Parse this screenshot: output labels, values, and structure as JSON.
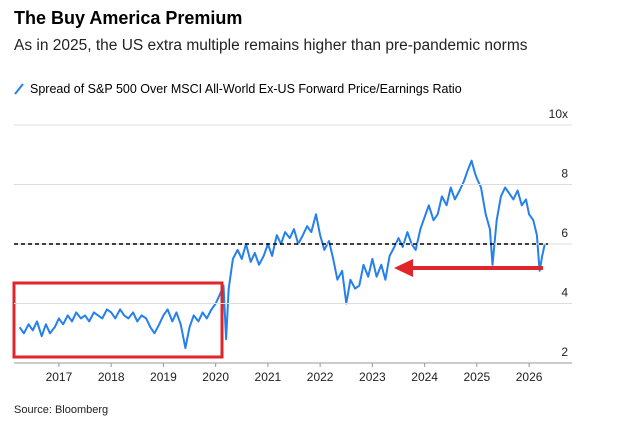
{
  "chart_data": {
    "type": "line",
    "title": "The Buy America Premium",
    "subtitle": "As in 2025, the US extra multiple remains higher than pre-pandemic norms",
    "source": "Source: Bloomberg",
    "x": [
      2016.25,
      2016.33,
      2016.42,
      2016.5,
      2016.58,
      2016.67,
      2016.75,
      2016.83,
      2016.92,
      2017.0,
      2017.08,
      2017.17,
      2017.25,
      2017.33,
      2017.42,
      2017.5,
      2017.58,
      2017.67,
      2017.75,
      2017.83,
      2017.92,
      2018.0,
      2018.08,
      2018.17,
      2018.25,
      2018.33,
      2018.42,
      2018.5,
      2018.58,
      2018.67,
      2018.75,
      2018.83,
      2018.92,
      2019.0,
      2019.08,
      2019.17,
      2019.25,
      2019.33,
      2019.42,
      2019.5,
      2019.58,
      2019.67,
      2019.75,
      2019.83,
      2019.92,
      2020.0,
      2020.08,
      2020.15,
      2020.2,
      2020.25,
      2020.33,
      2020.42,
      2020.5,
      2020.58,
      2020.67,
      2020.75,
      2020.83,
      2020.92,
      2021.0,
      2021.08,
      2021.17,
      2021.25,
      2021.33,
      2021.42,
      2021.5,
      2021.58,
      2021.67,
      2021.75,
      2021.83,
      2021.92,
      2022.0,
      2022.08,
      2022.17,
      2022.25,
      2022.33,
      2022.42,
      2022.5,
      2022.58,
      2022.67,
      2022.75,
      2022.83,
      2022.92,
      2023.0,
      2023.08,
      2023.17,
      2023.25,
      2023.33,
      2023.42,
      2023.5,
      2023.58,
      2023.67,
      2023.75,
      2023.83,
      2023.92,
      2024.0,
      2024.08,
      2024.17,
      2024.25,
      2024.33,
      2024.42,
      2024.5,
      2024.58,
      2024.67,
      2024.75,
      2024.83,
      2024.9,
      2024.96,
      2025.0,
      2025.08,
      2025.17,
      2025.25,
      2025.3,
      2025.38,
      2025.46,
      2025.54,
      2025.62,
      2025.7,
      2025.78,
      2025.86,
      2025.94,
      2026.0,
      2026.08,
      2026.15,
      2026.2,
      2026.25,
      2026.3
    ],
    "series": [
      {
        "name": "Spread of S&P 500 Over MSCI All-World Ex-US Forward Price/Earnings Ratio",
        "color": "#2680eb",
        "values": [
          3.2,
          3.0,
          3.3,
          3.1,
          3.4,
          2.9,
          3.3,
          3.0,
          3.2,
          3.5,
          3.3,
          3.6,
          3.4,
          3.7,
          3.5,
          3.6,
          3.4,
          3.7,
          3.6,
          3.5,
          3.8,
          3.7,
          3.5,
          3.8,
          3.6,
          3.5,
          3.7,
          3.4,
          3.6,
          3.5,
          3.2,
          3.0,
          3.3,
          3.6,
          3.8,
          3.4,
          3.7,
          3.3,
          2.5,
          3.2,
          3.6,
          3.4,
          3.7,
          3.5,
          3.8,
          4.0,
          4.3,
          4.6,
          2.8,
          4.5,
          5.5,
          5.8,
          5.5,
          6.0,
          5.4,
          5.7,
          5.3,
          5.6,
          6.0,
          5.6,
          6.3,
          6.0,
          6.4,
          6.2,
          6.5,
          6.0,
          6.3,
          6.6,
          6.4,
          7.0,
          6.3,
          5.8,
          6.1,
          5.5,
          4.8,
          5.1,
          4.0,
          4.8,
          4.5,
          4.6,
          5.3,
          4.9,
          5.5,
          4.9,
          5.3,
          4.8,
          5.6,
          5.9,
          6.2,
          5.9,
          6.4,
          6.0,
          5.8,
          6.5,
          6.9,
          7.3,
          6.8,
          7.0,
          7.6,
          7.3,
          7.9,
          7.5,
          7.8,
          8.1,
          8.5,
          8.8,
          8.4,
          8.2,
          7.9,
          7.0,
          6.5,
          5.3,
          6.8,
          7.6,
          7.9,
          7.7,
          7.5,
          7.8,
          7.3,
          7.5,
          7.0,
          6.8,
          6.3,
          5.1,
          5.6,
          6.0
        ]
      }
    ],
    "xlim": [
      2016.14,
      2026.4
    ],
    "xticks": [
      2017,
      2018,
      2019,
      2020,
      2021,
      2022,
      2023,
      2024,
      2025,
      2026
    ],
    "ylim": [
      2,
      10
    ],
    "yticks": [
      2,
      4,
      6,
      {
        "value": 8,
        "label": "8"
      },
      {
        "value": 10,
        "label": "10x"
      }
    ],
    "reference_line": 6,
    "grid": true
  }
}
